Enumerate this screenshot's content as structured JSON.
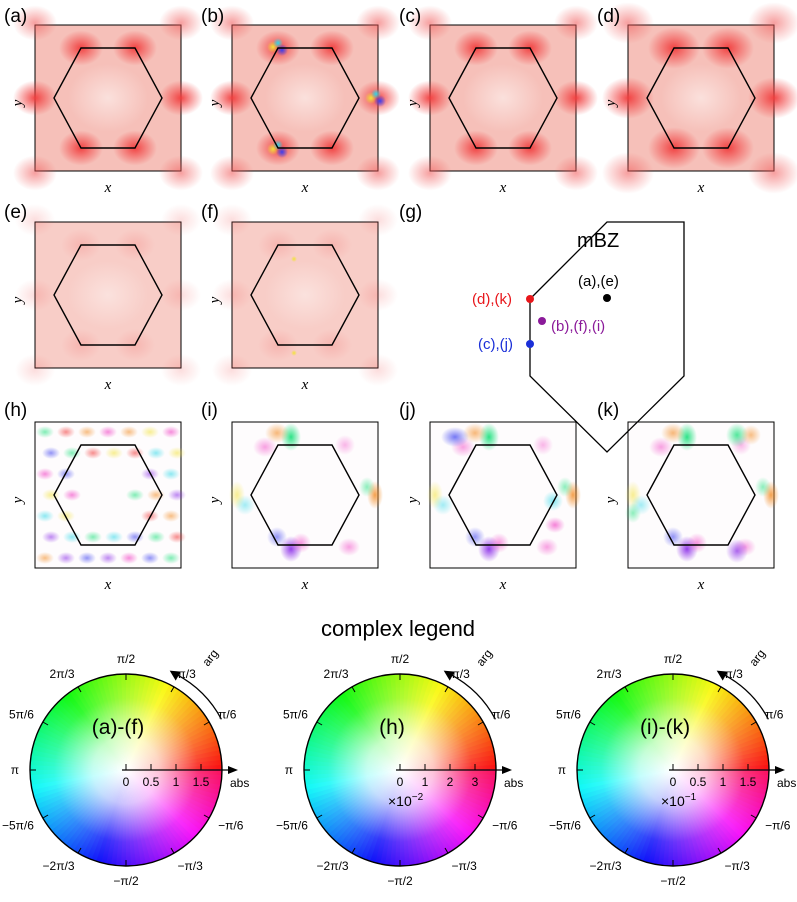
{
  "panel_labels": {
    "a": "(a)",
    "b": "(b)",
    "c": "(c)",
    "d": "(d)",
    "e": "(e)",
    "f": "(f)",
    "g": "(g)",
    "h": "(h)",
    "i": "(i)",
    "j": "(j)",
    "k": "(k)"
  },
  "axis_x": "x",
  "axis_y": "y",
  "mbz": {
    "title": "mBZ",
    "points": [
      {
        "label": "(a),(e)",
        "color": "#000000"
      },
      {
        "label": "(d),(k)",
        "color": "#e8161b"
      },
      {
        "label": "(b),(f),(i)",
        "color": "#8b1a9a"
      },
      {
        "label": "(c),(j)",
        "color": "#1a2fd8"
      }
    ]
  },
  "legend_heading": "complex legend",
  "legends": [
    {
      "title": "(a)-(f)",
      "ticks": [
        "0",
        "0.5",
        "1",
        "1.5"
      ],
      "scale": ""
    },
    {
      "title": "(h)",
      "ticks": [
        "0",
        "1",
        "2",
        "3"
      ],
      "scale": "×10",
      "scale_exp": "−2"
    },
    {
      "title": "(i)-(k)",
      "ticks": [
        "0",
        "0.5",
        "1",
        "1.5"
      ],
      "scale": "×10",
      "scale_exp": "−1"
    }
  ],
  "legend_axis": {
    "abs": "abs",
    "arg": "arg"
  },
  "angle_labels": {
    "pi_2": "π/2",
    "pi_3": "π/3",
    "pi_6": "π/6",
    "two_pi_3": "2π/3",
    "five_pi_6": "5π/6",
    "pi": "π",
    "m5pi_6": "−5π/6",
    "m2pi_3": "−2π/3",
    "mpi_2": "−π/2",
    "mpi_3": "−π/3",
    "mpi_6": "−π/6"
  },
  "colors": {
    "background": "#ffffff",
    "panel_pink": "#f7c3bc",
    "hot_red": "#f24a4a"
  }
}
